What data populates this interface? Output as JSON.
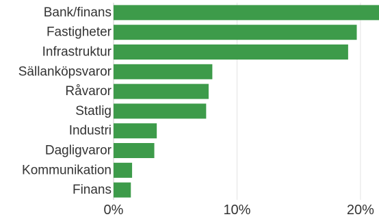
{
  "chart_data": {
    "type": "bar",
    "orientation": "horizontal",
    "categories": [
      "Bank/finans",
      "Fastigheter",
      "Infrastruktur",
      "Sällanköpsvaror",
      "Råvaror",
      "Statlig",
      "Industri",
      "Dagligvaror",
      "Kommunikation",
      "Finans"
    ],
    "values": [
      21.5,
      19.7,
      19.0,
      8.0,
      7.7,
      7.5,
      3.5,
      3.3,
      1.5,
      1.4
    ],
    "xlim": [
      0,
      21.5
    ],
    "xticks": [
      0,
      10,
      20
    ],
    "xtick_labels": [
      "0%",
      "10%",
      "20%"
    ],
    "title": "",
    "xlabel": "",
    "ylabel": "",
    "grid": true,
    "bar_color": "#3d9b4a"
  }
}
